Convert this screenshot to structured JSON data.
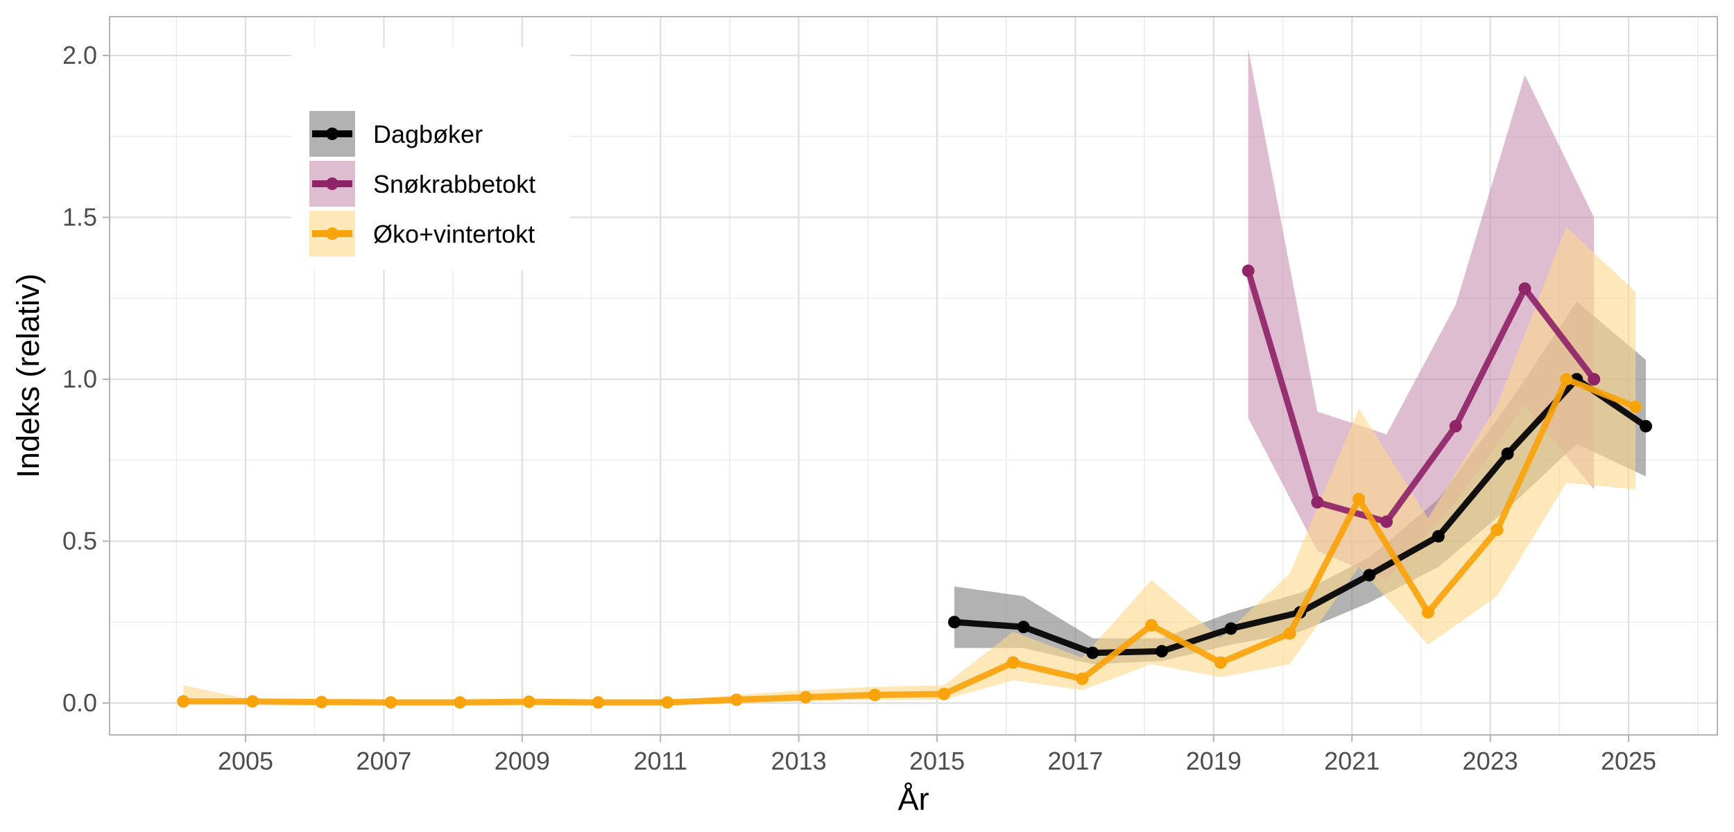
{
  "chart_data": {
    "type": "line",
    "title": "",
    "xlabel": "År",
    "ylabel": "Indeks (relativ)",
    "xlim": [
      2002.7,
      2026.0
    ],
    "ylim": [
      -0.1,
      2.1
    ],
    "x_ticks": [
      2005,
      2007,
      2009,
      2011,
      2013,
      2015,
      2017,
      2019,
      2021,
      2023,
      2025
    ],
    "y_ticks": [
      0.0,
      0.5,
      1.0,
      1.5,
      2.0
    ],
    "y_tick_labels": [
      "0.0",
      "0.5",
      "1.0",
      "1.5",
      "2.0"
    ],
    "grid": true,
    "legend_position": "top-left inside",
    "series": [
      {
        "name": "Dagbøker",
        "color": "#000000",
        "ribbon_color": "#7f7f7f",
        "ribbon_opacity": 0.6,
        "x": [
          2015.25,
          2016.25,
          2017.25,
          2018.25,
          2019.25,
          2020.25,
          2021.25,
          2022.25,
          2023.25,
          2024.25,
          2025.25
        ],
        "values": [
          0.25,
          0.235,
          0.155,
          0.16,
          0.23,
          0.28,
          0.395,
          0.515,
          0.77,
          1.0,
          0.855
        ],
        "lower": [
          0.17,
          0.17,
          0.12,
          0.13,
          0.18,
          0.22,
          0.31,
          0.42,
          0.6,
          0.8,
          0.7
        ],
        "upper": [
          0.36,
          0.33,
          0.2,
          0.2,
          0.28,
          0.34,
          0.45,
          0.63,
          0.92,
          1.24,
          1.06
        ]
      },
      {
        "name": "Snøkrabbetokt",
        "color": "#8f2468",
        "ribbon_color": "#c486ab",
        "ribbon_opacity": 0.55,
        "x": [
          2019.5,
          2020.5,
          2021.5,
          2022.5,
          2023.5,
          2024.5
        ],
        "values": [
          1.335,
          0.62,
          0.56,
          0.855,
          1.28,
          1.0
        ],
        "lower": [
          0.88,
          0.47,
          0.38,
          0.62,
          0.92,
          0.66
        ],
        "upper": [
          2.02,
          0.9,
          0.83,
          1.23,
          1.94,
          1.5
        ]
      },
      {
        "name": "Øko+vintertokt",
        "color": "#f9a30b",
        "ribbon_color": "#fdd88a",
        "ribbon_opacity": 0.6,
        "x": [
          2004.1,
          2005.1,
          2006.1,
          2007.1,
          2008.1,
          2009.1,
          2010.1,
          2011.1,
          2012.1,
          2013.1,
          2014.1,
          2015.1,
          2016.1,
          2017.1,
          2018.1,
          2019.1,
          2020.1,
          2021.1,
          2022.1,
          2023.1,
          2024.1,
          2025.1
        ],
        "values": [
          0.005,
          0.005,
          0.003,
          0.002,
          0.002,
          0.004,
          0.002,
          0.002,
          0.01,
          0.018,
          0.025,
          0.028,
          0.125,
          0.075,
          0.24,
          0.125,
          0.215,
          0.63,
          0.28,
          0.535,
          1.0,
          0.915
        ],
        "lower": [
          0.0,
          0.0,
          0.0,
          0.0,
          0.0,
          0.0,
          0.0,
          0.0,
          0.0,
          0.005,
          0.01,
          0.01,
          0.07,
          0.04,
          0.12,
          0.08,
          0.12,
          0.42,
          0.18,
          0.33,
          0.68,
          0.66
        ],
        "upper": [
          0.055,
          0.01,
          0.008,
          0.005,
          0.005,
          0.008,
          0.006,
          0.006,
          0.025,
          0.04,
          0.05,
          0.055,
          0.22,
          0.14,
          0.38,
          0.2,
          0.4,
          0.91,
          0.57,
          0.92,
          1.47,
          1.27
        ]
      }
    ]
  },
  "legend": {
    "items": [
      {
        "label": "Dagbøker"
      },
      {
        "label": "Snøkrabbetokt"
      },
      {
        "label": "Øko+vintertokt"
      }
    ]
  },
  "colors": {
    "grid_major": "#dedede",
    "grid_minor": "#ececec",
    "panel_border": "#b3b3b3",
    "tick_text": "#4d4d4d"
  }
}
